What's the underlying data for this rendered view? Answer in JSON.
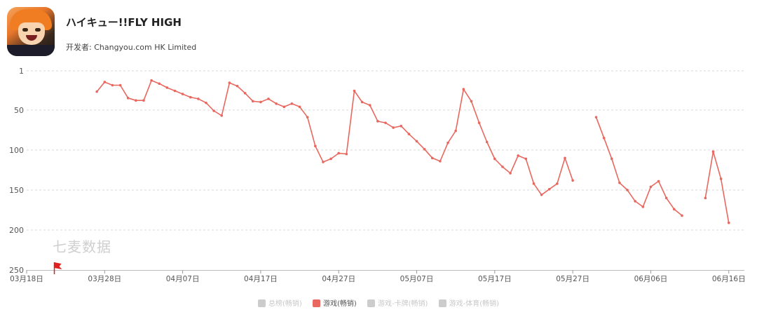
{
  "app": {
    "title": "ハイキュー!!FLY HIGH",
    "developer": "开发者: Changyou.com HK Limited"
  },
  "watermark": "七麦数据",
  "colors": {
    "line": "#e8685f",
    "grid": "#d9d9d9",
    "axis": "#555555",
    "inactive": "#cccccc"
  },
  "legend": [
    {
      "label": "总榜(畅销)",
      "active": false,
      "color": "#cccccc"
    },
    {
      "label": "游戏(畅销)",
      "active": true,
      "color": "#e8685f"
    },
    {
      "label": "游戏-卡牌(畅销)",
      "active": false,
      "color": "#cccccc"
    },
    {
      "label": "游戏-体育(畅销)",
      "active": false,
      "color": "#cccccc"
    }
  ],
  "chart_data": {
    "type": "line",
    "title": "",
    "xlabel": "",
    "ylabel": "",
    "y_inverted": true,
    "ylim": [
      1,
      250
    ],
    "y_ticks": [
      1,
      50,
      100,
      150,
      200,
      250
    ],
    "x_ticks": [
      "03月18日",
      "03月28日",
      "04月07日",
      "04月17日",
      "04月27日",
      "05月07日",
      "05月17日",
      "05月27日",
      "06月06日",
      "06月16日"
    ],
    "x_start": "03-18",
    "x_end": "06-18",
    "grid": true,
    "legend_position": "bottom",
    "markers": [
      {
        "date": "03-22",
        "type": "flag"
      }
    ],
    "series": [
      {
        "name": "游戏(畅销)",
        "segments": [
          [
            [
              "03-27",
              27
            ],
            [
              "03-28",
              15
            ],
            [
              "03-29",
              19
            ],
            [
              "03-30",
              19
            ],
            [
              "03-31",
              35
            ],
            [
              "04-01",
              38
            ],
            [
              "04-02",
              38
            ],
            [
              "04-03",
              13
            ],
            [
              "04-04",
              17
            ],
            [
              "04-05",
              22
            ],
            [
              "04-06",
              26
            ],
            [
              "04-07",
              30
            ],
            [
              "04-08",
              34
            ],
            [
              "04-09",
              36
            ],
            [
              "04-10",
              41
            ],
            [
              "04-11",
              51
            ],
            [
              "04-12",
              57
            ],
            [
              "04-13",
              16
            ],
            [
              "04-14",
              20
            ],
            [
              "04-15",
              29
            ],
            [
              "04-16",
              39
            ],
            [
              "04-17",
              40
            ],
            [
              "04-18",
              36
            ],
            [
              "04-19",
              42
            ],
            [
              "04-20",
              46
            ],
            [
              "04-21",
              42
            ],
            [
              "04-22",
              46
            ],
            [
              "04-23",
              59
            ],
            [
              "04-24",
              95
            ],
            [
              "04-25",
              115
            ],
            [
              "04-26",
              111
            ],
            [
              "04-27",
              104
            ],
            [
              "04-28",
              105
            ],
            [
              "04-29",
              26
            ],
            [
              "04-30",
              40
            ],
            [
              "05-01",
              44
            ],
            [
              "05-02",
              64
            ],
            [
              "05-03",
              66
            ],
            [
              "05-04",
              72
            ],
            [
              "05-05",
              70
            ],
            [
              "05-06",
              80
            ],
            [
              "05-07",
              89
            ],
            [
              "05-08",
              99
            ],
            [
              "05-09",
              110
            ],
            [
              "05-10",
              114
            ],
            [
              "05-11",
              91
            ],
            [
              "05-12",
              76
            ],
            [
              "05-13",
              24
            ],
            [
              "05-14",
              39
            ],
            [
              "05-15",
              66
            ],
            [
              "05-16",
              90
            ],
            [
              "05-17",
              111
            ],
            [
              "05-18",
              121
            ],
            [
              "05-19",
              129
            ],
            [
              "05-20",
              107
            ],
            [
              "05-21",
              111
            ],
            [
              "05-22",
              142
            ],
            [
              "05-23",
              156
            ],
            [
              "05-24",
              149
            ],
            [
              "05-25",
              142
            ],
            [
              "05-26",
              110
            ],
            [
              "05-27",
              138
            ]
          ],
          [
            [
              "05-30",
              59
            ],
            [
              "05-31",
              85
            ],
            [
              "06-01",
              111
            ],
            [
              "06-02",
              141
            ],
            [
              "06-03",
              150
            ],
            [
              "06-04",
              164
            ],
            [
              "06-05",
              171
            ],
            [
              "06-06",
              146
            ],
            [
              "06-07",
              139
            ],
            [
              "06-08",
              160
            ],
            [
              "06-09",
              174
            ],
            [
              "06-10",
              182
            ]
          ],
          [
            [
              "06-13",
              160
            ],
            [
              "06-14",
              102
            ],
            [
              "06-15",
              136
            ],
            [
              "06-16",
              191
            ]
          ]
        ]
      }
    ]
  }
}
